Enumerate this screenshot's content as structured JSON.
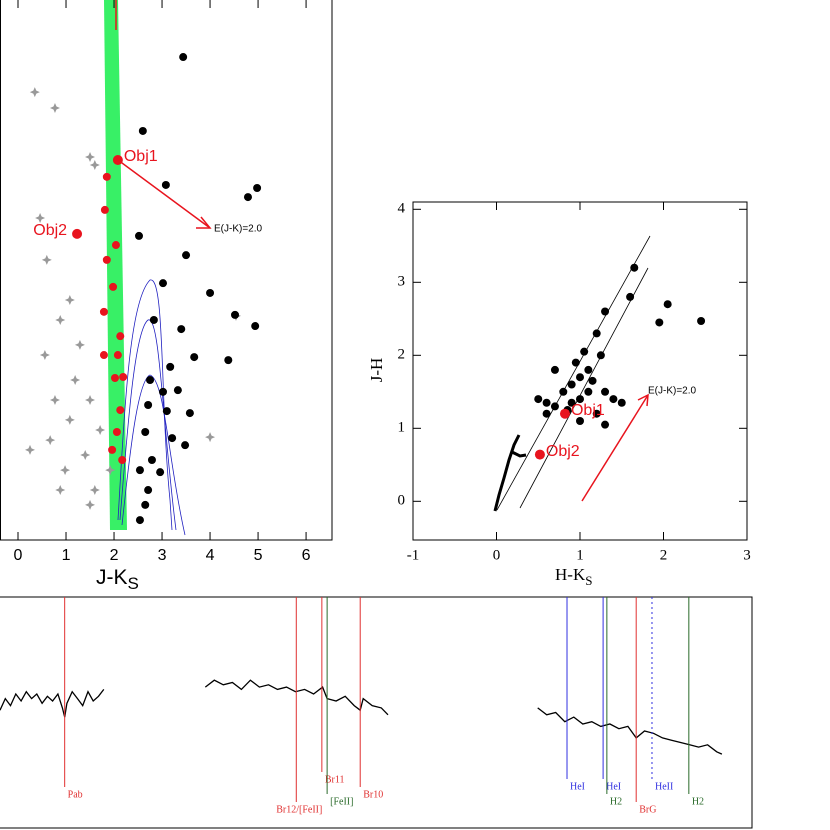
{
  "chart_data": [
    {
      "type": "scatter",
      "xlabel": "J-K",
      "xlabel_sub": "S",
      "xlim": [
        -0.375,
        6.54
      ],
      "xticks": [
        0,
        1,
        2,
        3,
        4,
        5,
        6
      ],
      "ylim": [
        0,
        16
      ],
      "annotation": "E(J-K)=2.0",
      "series": [
        {
          "color": "#999999",
          "marker": "star",
          "x": [
            0.35,
            0.77,
            0.46,
            0.6,
            1.5,
            1.6,
            1.08,
            0.88,
            0.56,
            1.29,
            1.19,
            0.77,
            1.5,
            1.08,
            0.67,
            1.71,
            1.4,
            0.98,
            1.92,
            1.6,
            1.5,
            0.25,
            0.88,
            4.0,
            4.54
          ],
          "values": [
            13.27,
            12.8,
            9.54,
            8.3,
            11.35,
            11.11,
            7.11,
            6.52,
            5.48,
            5.78,
            4.74,
            4.15,
            4.15,
            3.56,
            2.96,
            3.26,
            2.52,
            2.07,
            2.07,
            1.48,
            1.04,
            2.67,
            1.48,
            3.05,
            6.64
          ]
        },
        {
          "color": "#000000",
          "marker": "circle",
          "x": [
            3.44,
            2.6,
            3.08,
            4.98,
            4.79,
            2.52,
            3.5,
            3.02,
            4.0,
            4.52,
            4.94,
            3.4,
            2.83,
            4.38,
            3.67,
            3.17,
            2.75,
            3.02,
            3.33,
            2.71,
            3.1,
            3.58,
            2.65,
            3.21,
            3.48,
            2.79,
            2.54,
            2.96,
            2.71,
            2.65,
            2.54
          ],
          "values": [
            14.31,
            12.12,
            10.52,
            10.43,
            10.16,
            9.01,
            8.44,
            7.61,
            7.32,
            6.67,
            6.34,
            6.25,
            6.52,
            5.33,
            5.42,
            5.13,
            4.74,
            4.39,
            4.44,
            4.0,
            3.82,
            3.76,
            3.2,
            3.02,
            2.81,
            2.37,
            2.07,
            2.01,
            1.48,
            1.04,
            0.59
          ]
        },
        {
          "color": "#e8141e",
          "marker": "circle",
          "x": [
            2.08,
            1.23,
            1.85,
            1.81,
            2.04,
            1.85,
            1.98,
            1.79,
            2.13,
            1.79,
            2.08,
            2.02,
            2.19,
            2.13,
            2.06,
            1.96,
            2.17
          ],
          "values": [
            11.26,
            9.07,
            10.76,
            9.78,
            8.74,
            8.3,
            7.5,
            6.76,
            6.04,
            5.48,
            5.48,
            4.8,
            4.83,
            3.85,
            3.2,
            2.67,
            2.37
          ],
          "point_labels": [
            "Obj1",
            "Obj2",
            null,
            null,
            null,
            null,
            null,
            null,
            null,
            null,
            null,
            null,
            null,
            null,
            null,
            null,
            null
          ]
        }
      ]
    },
    {
      "type": "scatter",
      "xlabel": "H-K",
      "xlabel_sub": "S",
      "ylabel": "J-H",
      "xlim": [
        -1,
        3
      ],
      "xticks": [
        -1,
        0,
        1,
        2,
        3
      ],
      "ylim": [
        -0.53,
        4.1
      ],
      "yticks": [
        0,
        1,
        2,
        3,
        4
      ],
      "annotation": "E(J-K)=2.0",
      "series": [
        {
          "color": "#000000",
          "marker": "circle",
          "x": [
            0.7,
            1.3,
            1.6,
            1.65,
            2.05,
            1.95,
            2.45,
            0.9,
            1.0,
            1.1,
            1.2,
            1.25,
            0.8,
            0.9,
            1.0,
            1.1,
            0.6,
            0.7,
            1.3,
            1.4,
            1.5,
            1.2,
            0.85,
            1.0,
            1.3,
            0.5,
            0.6,
            1.15,
            0.95,
            1.05
          ],
          "values": [
            1.8,
            2.6,
            2.8,
            3.2,
            2.7,
            2.45,
            2.47,
            1.6,
            1.7,
            1.8,
            2.3,
            2.0,
            1.5,
            1.35,
            1.4,
            1.5,
            1.35,
            1.3,
            1.5,
            1.4,
            1.35,
            1.2,
            1.25,
            1.1,
            1.05,
            1.4,
            1.2,
            1.65,
            1.9,
            2.05
          ]
        },
        {
          "color": "#e8141e",
          "marker": "circle",
          "x": [
            0.82,
            0.52
          ],
          "values": [
            1.2,
            0.64
          ],
          "point_labels": [
            "Obj1",
            "Obj2"
          ]
        }
      ]
    },
    {
      "type": "line",
      "xlim": [
        0,
        100
      ],
      "ylim": [
        0,
        10
      ],
      "series": [
        {
          "color": "#000000",
          "x": [
            0,
            0.7,
            1.4,
            2.1,
            2.8,
            3.5,
            4.2,
            4.9,
            5.6,
            6.3,
            7.0,
            7.7,
            8.3,
            8.6,
            8.9,
            9.6,
            10.3,
            11.0,
            11.7,
            12.4,
            13.1,
            13.8
          ],
          "values": [
            5.1,
            5.6,
            5.3,
            5.8,
            5.5,
            5.9,
            5.6,
            5.8,
            5.4,
            5.7,
            5.5,
            5.8,
            5.2,
            4.8,
            5.4,
            5.9,
            5.6,
            5.3,
            5.9,
            5.5,
            5.7,
            6.0
          ]
        },
        {
          "color": "#000000",
          "x": [
            27.3,
            28.5,
            29.7,
            30.9,
            32.1,
            33.3,
            34.5,
            35.7,
            36.9,
            38.1,
            39.3,
            40.5,
            41.7,
            42.9,
            43.5,
            44.7,
            45.9,
            47.1,
            47.9,
            48.3,
            49.5,
            50.7,
            51.6
          ],
          "values": [
            6.1,
            6.4,
            6.2,
            6.3,
            6.0,
            6.4,
            6.1,
            6.2,
            6.0,
            6.1,
            5.9,
            6.0,
            5.8,
            6.1,
            5.6,
            5.5,
            5.7,
            5.3,
            5.1,
            5.6,
            5.3,
            5.2,
            4.9
          ]
        },
        {
          "color": "#000000",
          "x": [
            71.5,
            72.7,
            73.9,
            75.1,
            76.3,
            77.5,
            78.7,
            79.9,
            81.1,
            82.3,
            83.5,
            84.6,
            85.7,
            86.9,
            88.1,
            89.3,
            90.5,
            91.7,
            92.9,
            94.1,
            95.3,
            96.0
          ],
          "values": [
            5.2,
            4.9,
            5.0,
            4.6,
            4.8,
            4.5,
            4.6,
            4.4,
            4.5,
            4.3,
            4.4,
            3.9,
            4.2,
            4.1,
            3.9,
            3.8,
            3.7,
            3.6,
            3.5,
            3.6,
            3.3,
            3.2
          ]
        }
      ],
      "lines": [
        {
          "label": "Pab",
          "x": 8.6,
          "color": "#e03030"
        },
        {
          "label": "Br12/[FeII]",
          "x": 39.4,
          "color": "#e03030"
        },
        {
          "label": "Br11",
          "x": 42.8,
          "color": "#e03030"
        },
        {
          "label": "[FeII]",
          "x": 43.5,
          "color": "#2a6a2a"
        },
        {
          "label": "Br10",
          "x": 47.9,
          "color": "#e03030"
        },
        {
          "label": "HeI",
          "x": 75.4,
          "color": "#3030e0"
        },
        {
          "label": "HeI",
          "x": 80.2,
          "color": "#3030e0"
        },
        {
          "label": "H2",
          "x": 80.7,
          "color": "#2a6a2a"
        },
        {
          "label": "BrG",
          "x": 84.6,
          "color": "#e03030"
        },
        {
          "label": "HeII",
          "x": 86.7,
          "color": "#3030e0",
          "style": "dotted"
        },
        {
          "label": "H2",
          "x": 91.6,
          "color": "#2a6a2a"
        }
      ]
    }
  ]
}
